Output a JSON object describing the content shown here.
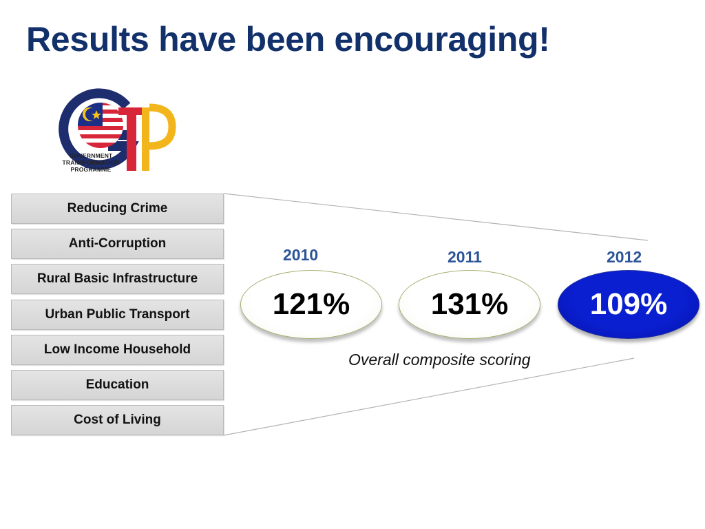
{
  "slide": {
    "title": "Results have been encouraging!",
    "logo": {
      "name": "gtp-logo",
      "caption_lines": [
        "GOVERNMENT",
        "TRANSFORMATION",
        "PROGRAMME"
      ]
    },
    "focus_areas": [
      "Reducing Crime",
      "Anti-Corruption",
      "Rural Basic Infrastructure",
      "Urban Public Transport",
      "Low Income Household",
      "Education",
      "Cost of Living"
    ],
    "scores": [
      {
        "year": "2010",
        "value": "121%"
      },
      {
        "year": "2011",
        "value": "131%"
      },
      {
        "year": "2012",
        "value": "109%"
      }
    ],
    "caption": "Overall composite scoring",
    "colors": {
      "title": "#12316b",
      "year": "#2c5597",
      "highlight_ellipse": "#0a1fd0"
    }
  }
}
